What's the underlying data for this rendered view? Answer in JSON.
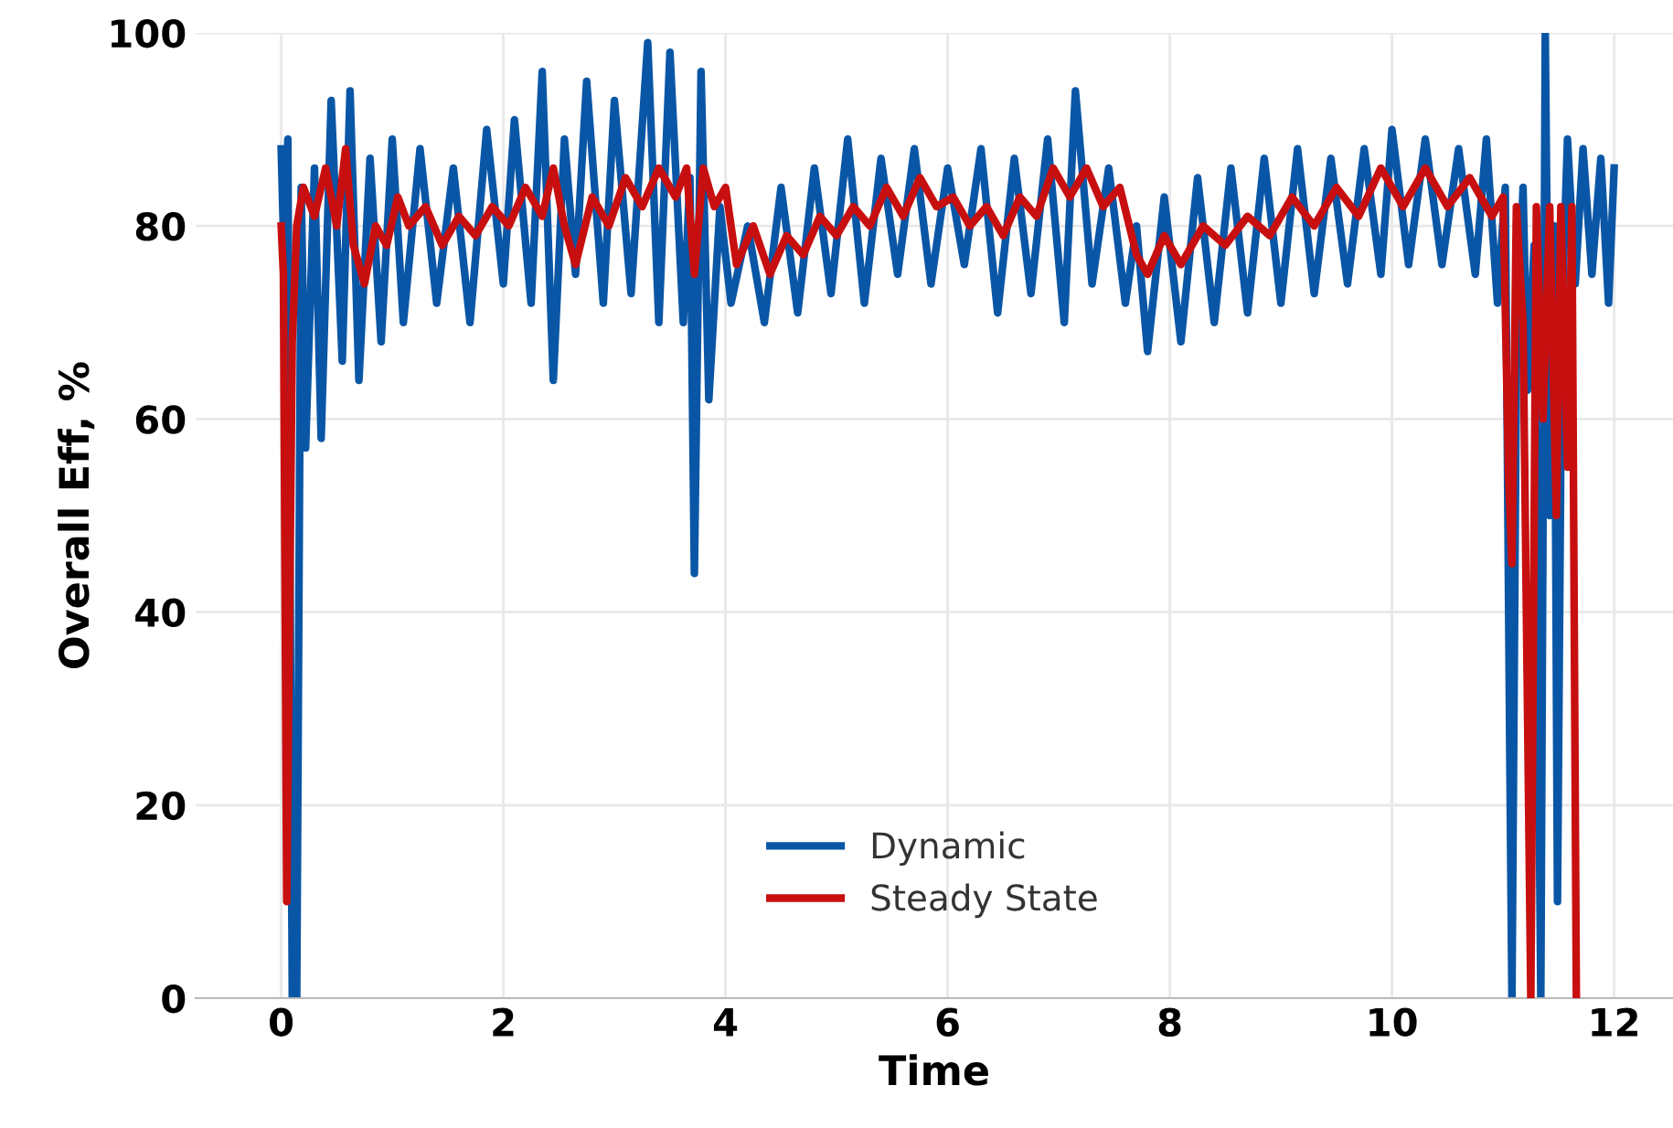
{
  "chart_data": {
    "type": "line",
    "xlabel": "Time",
    "ylabel": "Overall Eff, %",
    "xlim": [
      -0.77,
      12.53
    ],
    "ylim": [
      0,
      100
    ],
    "xticks": [
      0,
      2,
      4,
      6,
      8,
      10,
      12
    ],
    "yticks": [
      0,
      20,
      40,
      60,
      80,
      100
    ],
    "grid": true,
    "legend": "bottom",
    "line_style": "solid",
    "marker": "none",
    "series": [
      {
        "name": "Dynamic",
        "color": "#0a56a6",
        "x": [
          0.0,
          0.03,
          0.06,
          0.1,
          0.14,
          0.18,
          0.22,
          0.3,
          0.36,
          0.45,
          0.55,
          0.62,
          0.7,
          0.8,
          0.9,
          1.0,
          1.1,
          1.25,
          1.4,
          1.55,
          1.7,
          1.85,
          2.0,
          2.1,
          2.25,
          2.35,
          2.45,
          2.55,
          2.65,
          2.75,
          2.9,
          3.0,
          3.15,
          3.3,
          3.4,
          3.5,
          3.62,
          3.68,
          3.72,
          3.78,
          3.85,
          3.95,
          4.05,
          4.2,
          4.35,
          4.5,
          4.65,
          4.8,
          4.95,
          5.1,
          5.25,
          5.4,
          5.55,
          5.7,
          5.85,
          6.0,
          6.15,
          6.3,
          6.45,
          6.6,
          6.75,
          6.9,
          7.05,
          7.15,
          7.3,
          7.45,
          7.6,
          7.7,
          7.8,
          7.95,
          8.1,
          8.25,
          8.4,
          8.55,
          8.7,
          8.85,
          9.0,
          9.15,
          9.3,
          9.45,
          9.6,
          9.75,
          9.9,
          10.0,
          10.15,
          10.3,
          10.45,
          10.6,
          10.75,
          10.85,
          10.95,
          11.02,
          11.06,
          11.08,
          11.12,
          11.18,
          11.22,
          11.28,
          11.34,
          11.38,
          11.42,
          11.46,
          11.49,
          11.53,
          11.58,
          11.65,
          11.72,
          11.8,
          11.88,
          11.95,
          12.0
        ],
        "values": [
          88,
          75,
          89,
          0,
          0,
          84,
          57,
          86,
          58,
          93,
          66,
          94,
          64,
          87,
          68,
          89,
          70,
          88,
          72,
          86,
          70,
          90,
          74,
          91,
          72,
          96,
          64,
          89,
          75,
          95,
          72,
          93,
          73,
          99,
          70,
          98,
          70,
          85,
          44,
          96,
          62,
          82,
          72,
          80,
          70,
          84,
          71,
          86,
          73,
          89,
          72,
          87,
          75,
          88,
          74,
          86,
          76,
          88,
          71,
          87,
          73,
          89,
          70,
          94,
          74,
          86,
          72,
          80,
          67,
          83,
          68,
          85,
          70,
          86,
          71,
          87,
          72,
          88,
          73,
          87,
          74,
          88,
          75,
          90,
          76,
          89,
          76,
          88,
          75,
          89,
          72,
          84,
          26,
          0,
          65,
          84,
          63,
          78,
          0,
          100,
          50,
          80,
          10,
          71,
          89,
          74,
          88,
          75,
          87,
          72,
          86
        ]
      },
      {
        "name": "Steady State",
        "color": "#c80f0f",
        "x": [
          0.0,
          0.02,
          0.05,
          0.08,
          0.1,
          0.14,
          0.2,
          0.3,
          0.4,
          0.5,
          0.58,
          0.65,
          0.75,
          0.85,
          0.95,
          1.05,
          1.15,
          1.3,
          1.45,
          1.6,
          1.75,
          1.9,
          2.05,
          2.2,
          2.35,
          2.45,
          2.55,
          2.65,
          2.8,
          2.95,
          3.1,
          3.25,
          3.4,
          3.55,
          3.65,
          3.72,
          3.8,
          3.9,
          4.0,
          4.1,
          4.25,
          4.4,
          4.55,
          4.7,
          4.85,
          5.0,
          5.15,
          5.3,
          5.45,
          5.6,
          5.75,
          5.9,
          6.05,
          6.2,
          6.35,
          6.5,
          6.65,
          6.8,
          6.95,
          7.1,
          7.25,
          7.4,
          7.55,
          7.7,
          7.8,
          7.95,
          8.1,
          8.3,
          8.5,
          8.7,
          8.9,
          9.1,
          9.3,
          9.5,
          9.7,
          9.9,
          10.1,
          10.3,
          10.5,
          10.7,
          10.9,
          11.0,
          11.05,
          11.08,
          11.12,
          11.18,
          11.25,
          11.3,
          11.36,
          11.42,
          11.48,
          11.52,
          11.58,
          11.62,
          11.66
        ],
        "values": [
          80,
          75,
          10,
          45,
          68,
          80,
          84,
          81,
          86,
          80,
          88,
          78,
          74,
          80,
          78,
          83,
          80,
          82,
          78,
          81,
          79,
          82,
          80,
          84,
          81,
          86,
          80,
          76,
          83,
          80,
          85,
          82,
          86,
          83,
          86,
          75,
          86,
          82,
          84,
          76,
          80,
          75,
          79,
          77,
          81,
          79,
          82,
          80,
          84,
          81,
          85,
          82,
          83,
          80,
          82,
          79,
          83,
          81,
          86,
          83,
          86,
          82,
          84,
          77,
          75,
          79,
          76,
          80,
          78,
          81,
          79,
          83,
          80,
          84,
          81,
          86,
          82,
          86,
          82,
          85,
          81,
          83,
          54,
          45,
          82,
          70,
          0,
          82,
          60,
          82,
          50,
          82,
          55,
          82,
          0
        ]
      }
    ]
  }
}
